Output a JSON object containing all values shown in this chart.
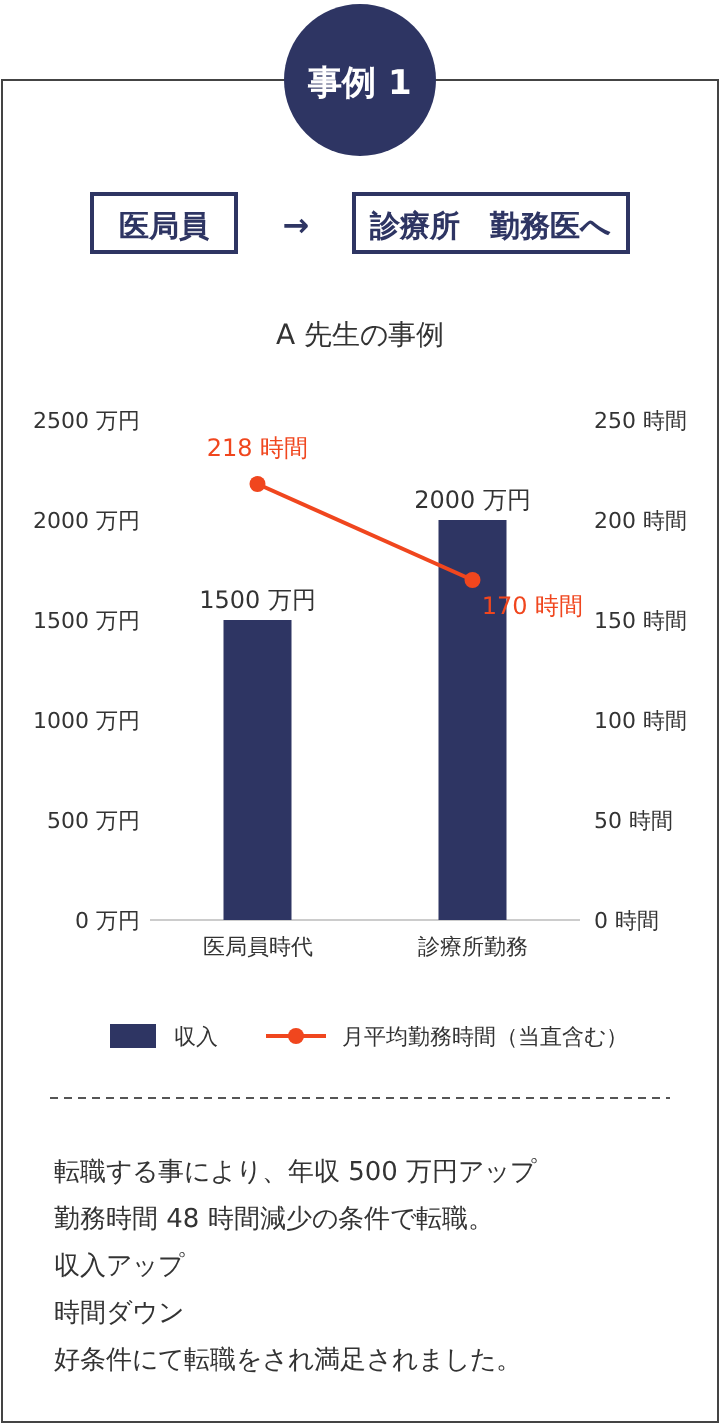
{
  "chart_data": {
    "type": "bar",
    "title": "A 先生の事例",
    "annotations": [
      "事例 1",
      "医局員",
      "→",
      "診療所　勤務医へ",
      "転職する事により、年収 500 万円アップ",
      "勤務時間 48 時間減少の条件で転職。",
      "収入アップ",
      "時間ダウン",
      "好条件にて転職をされ満足されました。"
    ],
    "categories": [
      "医局員時代",
      "診療所勤務"
    ],
    "series": [
      {
        "name": "収入",
        "color": "#2e3563",
        "values": [
          1500,
          2000
        ],
        "value_labels": [
          "1500 万円",
          "2000 万円"
        ]
      },
      {
        "name": "月平均勤務時間（当直含む）",
        "type": "line",
        "axis": "y2",
        "color": "#f0461e",
        "marker": "circle",
        "values": [
          218,
          170
        ],
        "value_labels": [
          "218 時間",
          "170 時間"
        ]
      }
    ],
    "ylim": [
      0,
      2500
    ],
    "yticks": [
      {
        "value": 0,
        "label": "0 万円"
      },
      {
        "value": 500,
        "label": "500 万円"
      },
      {
        "value": 1000,
        "label": "1000 万円"
      },
      {
        "value": 1500,
        "label": "1500 万円"
      },
      {
        "value": 2000,
        "label": "2000 万円"
      },
      {
        "value": 2500,
        "label": "2500 万円"
      }
    ],
    "y2lim": [
      0,
      250
    ],
    "y2ticks": [
      {
        "value": 0,
        "label": "0 時間"
      },
      {
        "value": 50,
        "label": "50 時間"
      },
      {
        "value": 100,
        "label": "100 時間"
      },
      {
        "value": 150,
        "label": "150 時間"
      },
      {
        "value": 200,
        "label": "200 時間"
      },
      {
        "value": 250,
        "label": "250 時間"
      }
    ],
    "legend": "bottom",
    "grid": false
  }
}
